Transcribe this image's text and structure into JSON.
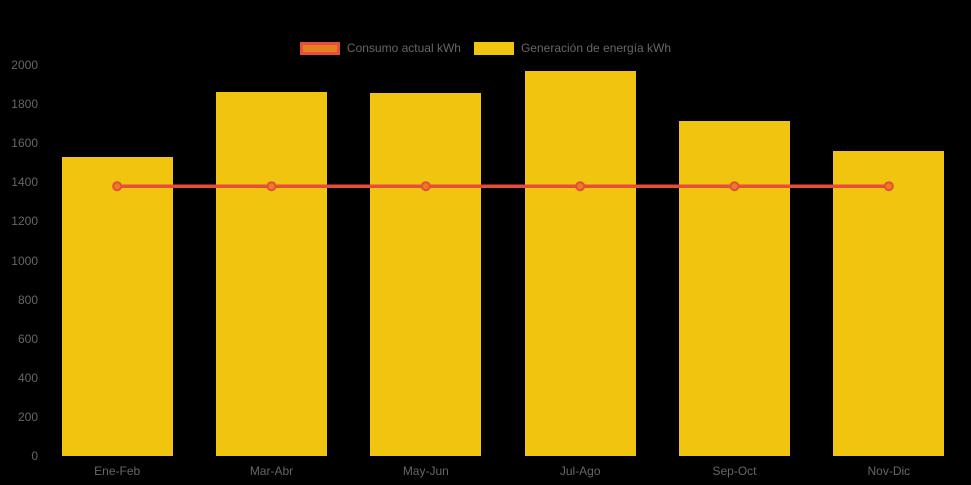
{
  "colors": {
    "background": "#000000",
    "text": "#666666",
    "bar_fill": "#f1c40f",
    "line_stroke": "#e74c3c",
    "point_fill": "#e67e22"
  },
  "legend": {
    "items": [
      {
        "label": "Consumo actual kWh",
        "swatch_fill": "#e67e22",
        "swatch_border": "#e74c3c",
        "series_type": "line"
      },
      {
        "label": "Generación de energía kWh",
        "swatch_fill": "#f1c40f",
        "swatch_border": "#f1c40f",
        "series_type": "bar"
      }
    ]
  },
  "chart_data": {
    "type": "bar",
    "categories": [
      "Ene-Feb",
      "Mar-Abr",
      "May-Jun",
      "Jul-Ago",
      "Sep-Oct",
      "Nov-Dic"
    ],
    "series": [
      {
        "name": "Generación de energía kWh",
        "type": "bar",
        "color": "#f1c40f",
        "values": [
          1530,
          1860,
          1855,
          1970,
          1715,
          1560
        ]
      },
      {
        "name": "Consumo actual kWh",
        "type": "line",
        "color": "#e74c3c",
        "point_color": "#e67e22",
        "values": [
          1380,
          1380,
          1380,
          1380,
          1380,
          1380
        ]
      }
    ],
    "title": "",
    "xlabel": "",
    "ylabel": "",
    "ylim": [
      0,
      2000
    ],
    "ytick_step": 200,
    "yticks": [
      0,
      200,
      400,
      600,
      800,
      1000,
      1200,
      1400,
      1600,
      1800,
      2000
    ],
    "grid": false,
    "legend_position": "top"
  }
}
